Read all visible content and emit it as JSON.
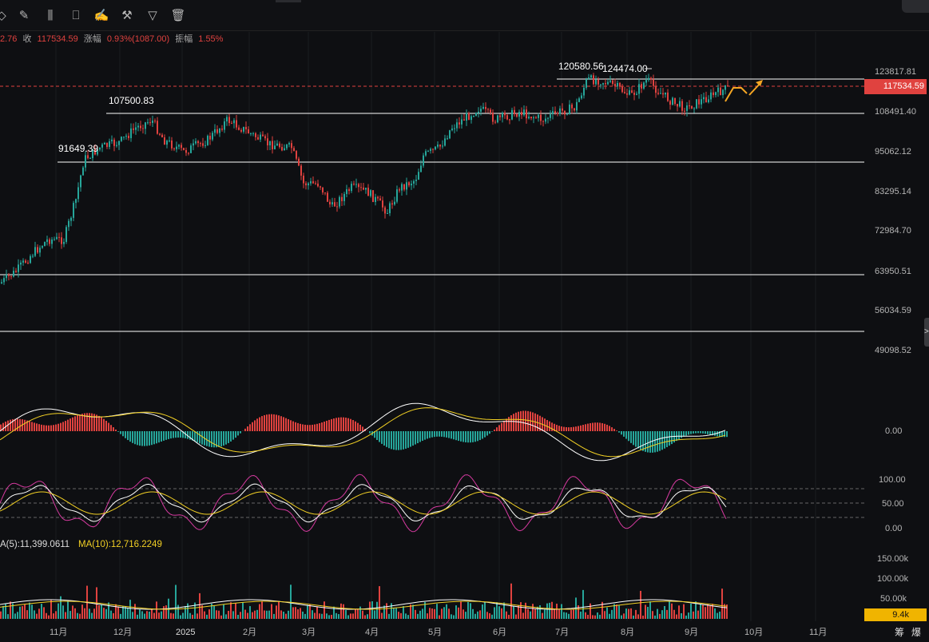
{
  "toolbar": {
    "icons": [
      "cursor-icon",
      "pencil-icon",
      "candles-icon",
      "clipboard-icon",
      "note-edit-icon",
      "wrench-icon",
      "filter-icon",
      "trash-icon"
    ]
  },
  "info_bar": {
    "partial": "2.76",
    "close_label": "收",
    "close_value": "117534.59",
    "change_label": "涨幅",
    "change_value": "0.93%(1087.00)",
    "amplitude_label": "振幅",
    "amplitude_value": "1.55%"
  },
  "price_axis": [
    "123817.81",
    "108491.40",
    "95062.12",
    "83295.14",
    "72984.70",
    "63950.51",
    "56034.59",
    "49098.52"
  ],
  "current_price": "117534.59",
  "level_labels": {
    "level_107500": "107500.83",
    "level_91649": "91649.39",
    "high_120580": "120580.56",
    "high_124474": "124474.00"
  },
  "macd_axis": [
    "0.00"
  ],
  "kdj_axis": [
    "100.00",
    "50.00",
    "0.00"
  ],
  "volume": {
    "ma5_label": "A(5):11,399.0611",
    "ma10_label": "MA(10):12,716.2249",
    "axis": [
      "150.00k",
      "100.00k",
      "50.00k"
    ],
    "current": "9.4k"
  },
  "time_axis": [
    "11月",
    "12月",
    "2025",
    "2月",
    "3月",
    "4月",
    "5月",
    "6月",
    "7月",
    "8月",
    "9月",
    "10月",
    "11月"
  ],
  "bottom_buttons": [
    "筹",
    "爆"
  ],
  "side_handle": ">",
  "colors": {
    "up": "#26a69a",
    "down": "#e0423f",
    "ma_yellow": "#f2d024",
    "kdj_pink": "#d63aa0",
    "accent_orange": "#f5a623"
  }
}
